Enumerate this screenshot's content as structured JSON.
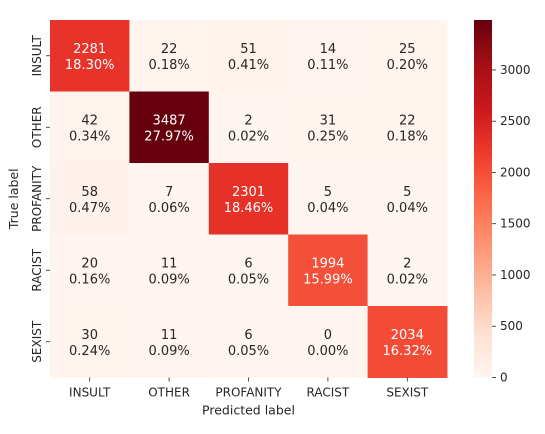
{
  "chart_data": {
    "type": "heatmap",
    "xlabel": "Predicted label",
    "ylabel": "True label",
    "x_categories": [
      "INSULT",
      "OTHER",
      "PROFANITY",
      "RACIST",
      "SEXIST"
    ],
    "y_categories": [
      "INSULT",
      "OTHER",
      "PROFANITY",
      "RACIST",
      "SEXIST"
    ],
    "counts": [
      [
        2281,
        22,
        51,
        14,
        25
      ],
      [
        42,
        3487,
        2,
        31,
        22
      ],
      [
        58,
        7,
        2301,
        5,
        5
      ],
      [
        20,
        11,
        6,
        1994,
        2
      ],
      [
        30,
        11,
        6,
        0,
        2034
      ]
    ],
    "percentages": [
      [
        "18.30%",
        "0.18%",
        "0.41%",
        "0.11%",
        "0.20%"
      ],
      [
        "0.34%",
        "27.97%",
        "0.02%",
        "0.25%",
        "0.18%"
      ],
      [
        "0.47%",
        "0.06%",
        "18.46%",
        "0.04%",
        "0.04%"
      ],
      [
        "0.16%",
        "0.09%",
        "0.05%",
        "15.99%",
        "0.02%"
      ],
      [
        "0.24%",
        "0.09%",
        "0.05%",
        "0.00%",
        "16.32%"
      ]
    ],
    "colormap": "Reds",
    "colorbar": {
      "range": [
        0,
        3487
      ],
      "ticks": [
        0,
        500,
        1000,
        1500,
        2000,
        2500,
        3000
      ]
    },
    "grid": false,
    "legend": "colorbar-right"
  }
}
